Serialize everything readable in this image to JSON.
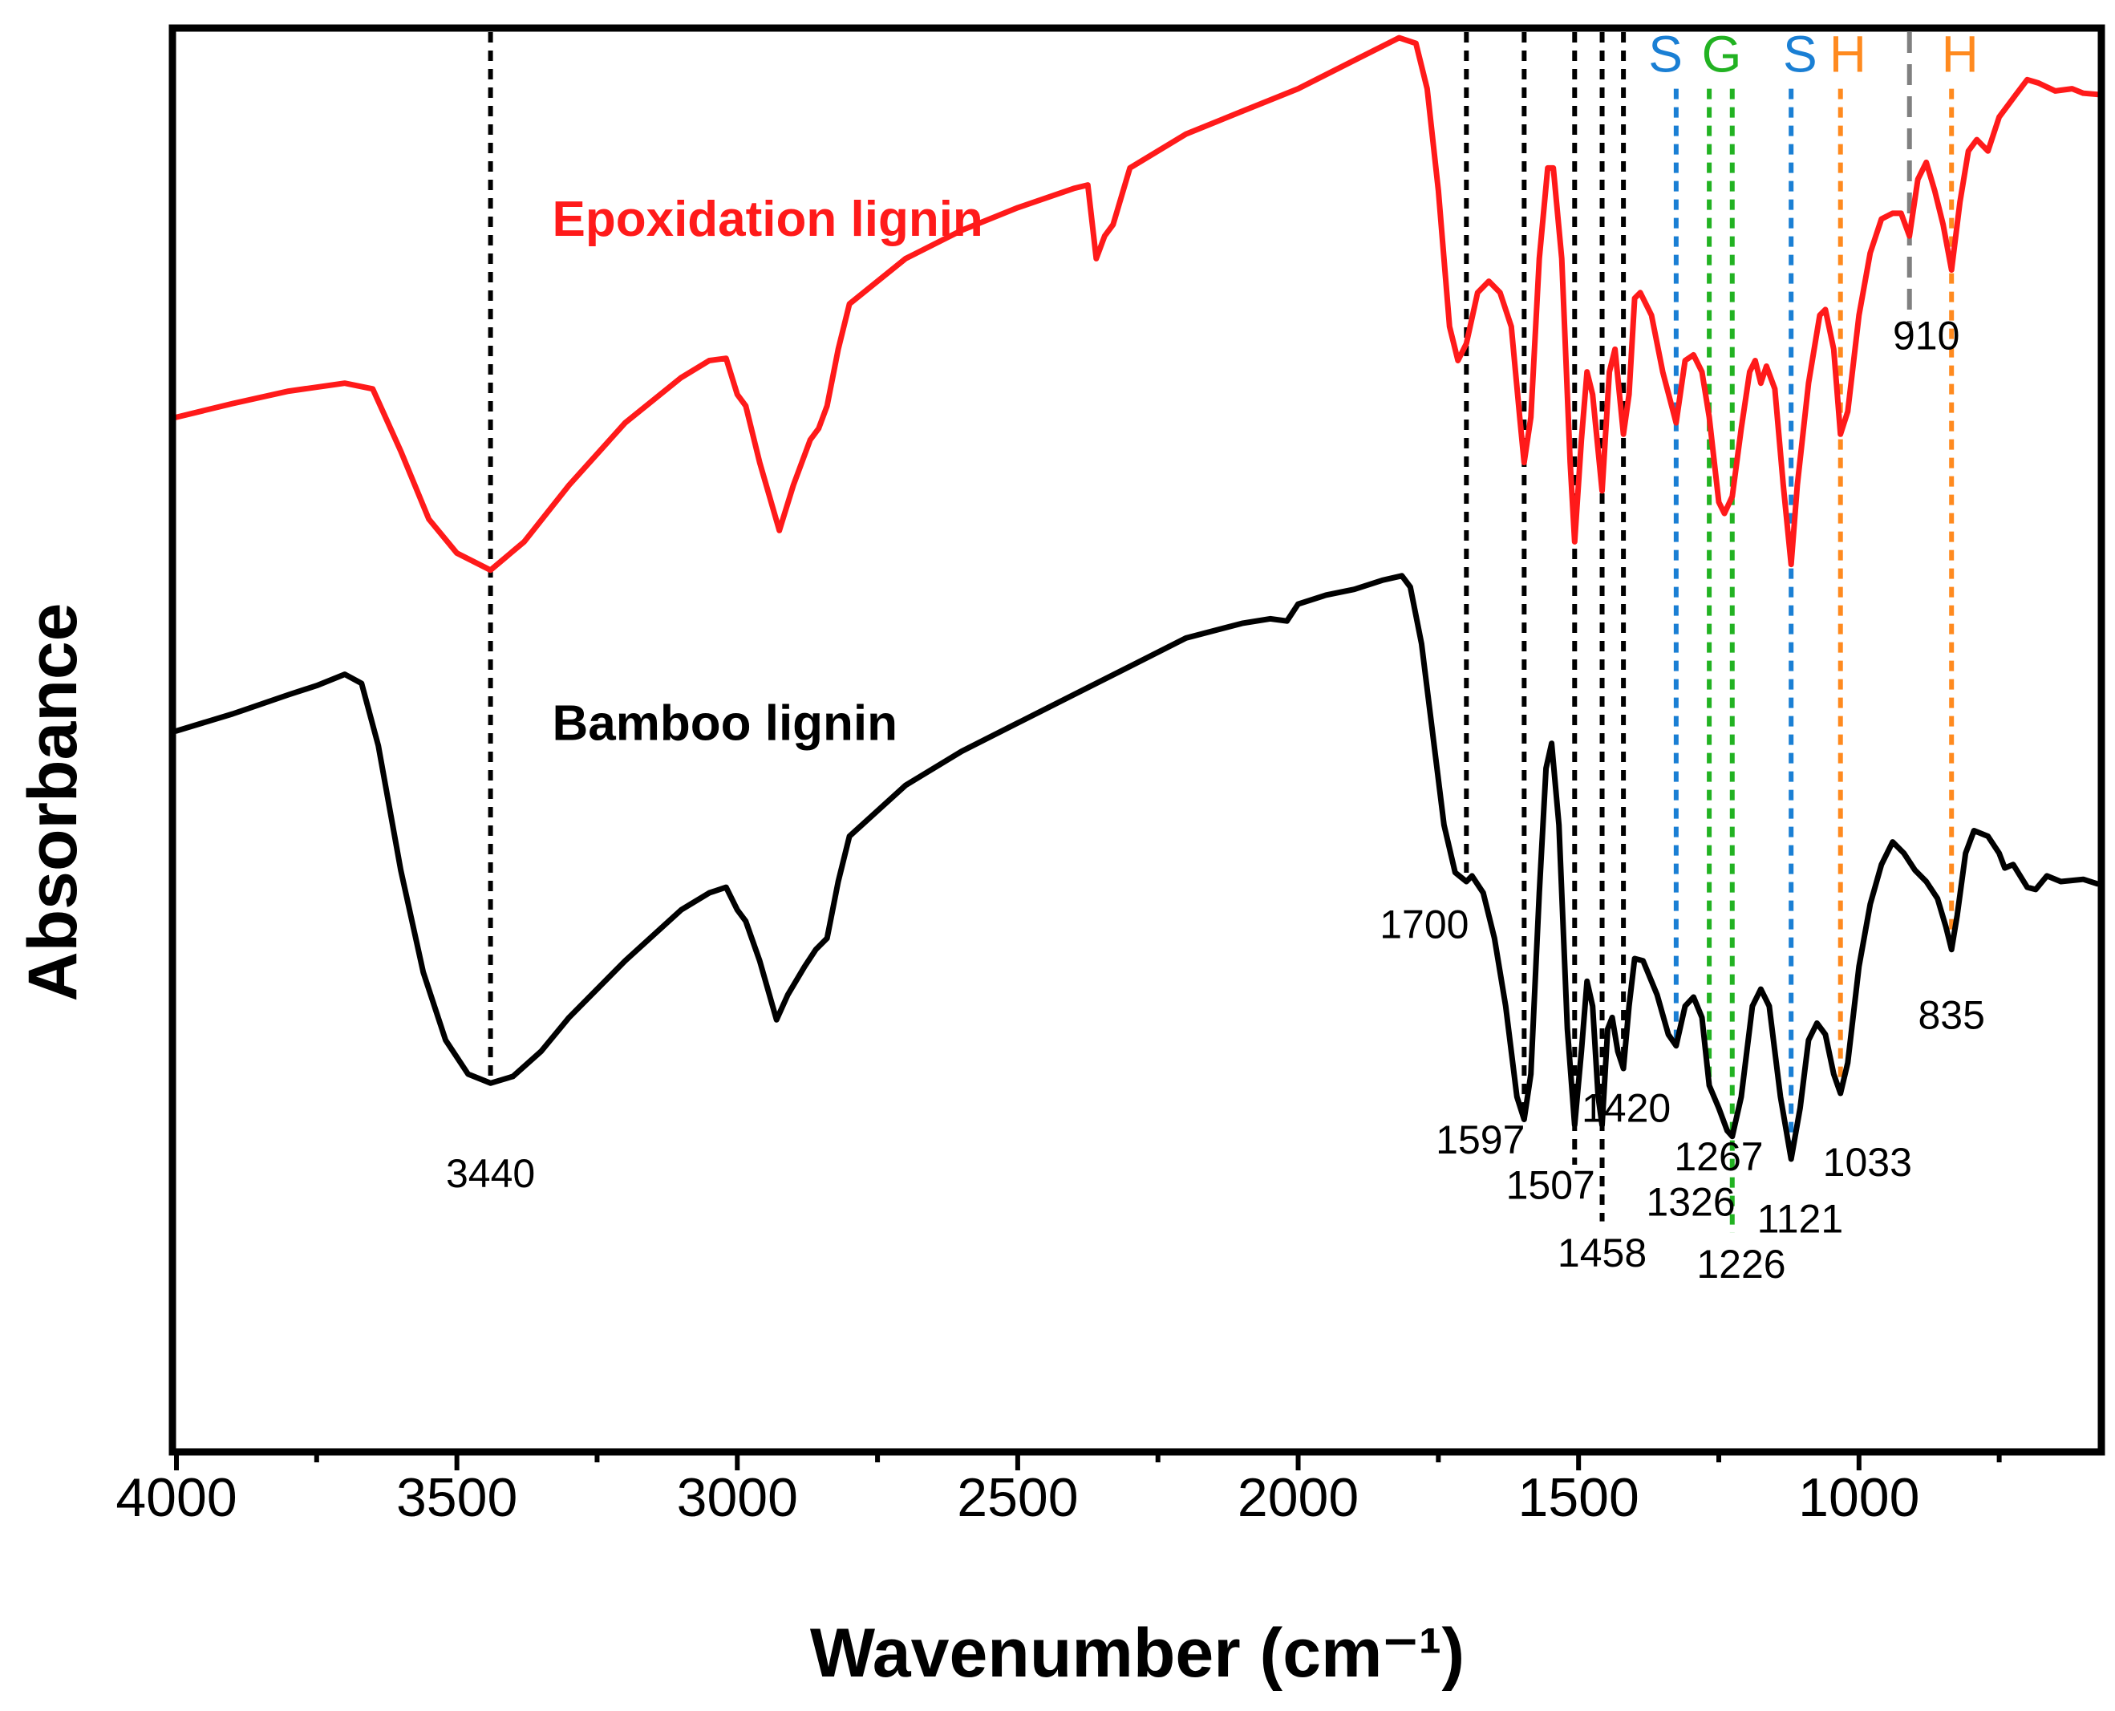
{
  "chart_data": {
    "type": "line",
    "title": "",
    "xlabel": "Wavenumber (cm⁻¹)",
    "ylabel": "Absorbance",
    "xlim": [
      4000,
      575
    ],
    "ylim": [
      -0.25,
      1.0
    ],
    "x_reversed": true,
    "y_ticks_shown": false,
    "xticks": [
      4000,
      3500,
      3000,
      2500,
      2000,
      1500,
      1000
    ],
    "xtick_labels": [
      "4000",
      "3500",
      "3000",
      "2500",
      "2000",
      "1500",
      "1000"
    ],
    "colors": {
      "epoxidation": "#ff1a1a",
      "bamboo": "#000000",
      "black_guides": "#000000",
      "s_unit": "#1a7fd4",
      "g_unit": "#22b222",
      "h_unit": "#ff8a1f",
      "band_910": "#808080"
    },
    "series": [
      {
        "name": "Epoxidation lignin",
        "color": "#ff1a1a",
        "points": [
          [
            4000,
            0.66
          ],
          [
            3900,
            0.672
          ],
          [
            3800,
            0.683
          ],
          [
            3700,
            0.69
          ],
          [
            3650,
            0.685
          ],
          [
            3600,
            0.63
          ],
          [
            3550,
            0.57
          ],
          [
            3500,
            0.54
          ],
          [
            3440,
            0.525
          ],
          [
            3380,
            0.55
          ],
          [
            3300,
            0.6
          ],
          [
            3200,
            0.655
          ],
          [
            3100,
            0.695
          ],
          [
            3050,
            0.71
          ],
          [
            3020,
            0.712
          ],
          [
            3000,
            0.68
          ],
          [
            2985,
            0.67
          ],
          [
            2960,
            0.62
          ],
          [
            2925,
            0.56
          ],
          [
            2900,
            0.6
          ],
          [
            2870,
            0.64
          ],
          [
            2855,
            0.65
          ],
          [
            2840,
            0.67
          ],
          [
            2820,
            0.72
          ],
          [
            2800,
            0.76
          ],
          [
            2700,
            0.8
          ],
          [
            2600,
            0.825
          ],
          [
            2500,
            0.845
          ],
          [
            2400,
            0.862
          ],
          [
            2375,
            0.865
          ],
          [
            2360,
            0.8
          ],
          [
            2345,
            0.82
          ],
          [
            2330,
            0.83
          ],
          [
            2300,
            0.88
          ],
          [
            2200,
            0.91
          ],
          [
            2100,
            0.93
          ],
          [
            2000,
            0.95
          ],
          [
            1900,
            0.975
          ],
          [
            1820,
            0.995
          ],
          [
            1790,
            0.99
          ],
          [
            1770,
            0.95
          ],
          [
            1750,
            0.86
          ],
          [
            1730,
            0.74
          ],
          [
            1715,
            0.71
          ],
          [
            1700,
            0.725
          ],
          [
            1680,
            0.77
          ],
          [
            1660,
            0.78
          ],
          [
            1640,
            0.77
          ],
          [
            1620,
            0.74
          ],
          [
            1605,
            0.66
          ],
          [
            1597,
            0.62
          ],
          [
            1585,
            0.66
          ],
          [
            1570,
            0.8
          ],
          [
            1555,
            0.88
          ],
          [
            1545,
            0.88
          ],
          [
            1530,
            0.8
          ],
          [
            1515,
            0.62
          ],
          [
            1507,
            0.55
          ],
          [
            1495,
            0.64
          ],
          [
            1485,
            0.7
          ],
          [
            1475,
            0.68
          ],
          [
            1458,
            0.595
          ],
          [
            1445,
            0.7
          ],
          [
            1435,
            0.72
          ],
          [
            1425,
            0.67
          ],
          [
            1420,
            0.645
          ],
          [
            1410,
            0.68
          ],
          [
            1400,
            0.765
          ],
          [
            1390,
            0.77
          ],
          [
            1370,
            0.75
          ],
          [
            1350,
            0.7
          ],
          [
            1326,
            0.655
          ],
          [
            1310,
            0.71
          ],
          [
            1295,
            0.715
          ],
          [
            1280,
            0.7
          ],
          [
            1267,
            0.66
          ],
          [
            1250,
            0.585
          ],
          [
            1240,
            0.575
          ],
          [
            1226,
            0.59
          ],
          [
            1210,
            0.65
          ],
          [
            1195,
            0.7
          ],
          [
            1185,
            0.71
          ],
          [
            1175,
            0.69
          ],
          [
            1165,
            0.705
          ],
          [
            1150,
            0.685
          ],
          [
            1135,
            0.6
          ],
          [
            1121,
            0.53
          ],
          [
            1110,
            0.6
          ],
          [
            1090,
            0.69
          ],
          [
            1070,
            0.75
          ],
          [
            1060,
            0.755
          ],
          [
            1045,
            0.72
          ],
          [
            1033,
            0.645
          ],
          [
            1020,
            0.665
          ],
          [
            1000,
            0.75
          ],
          [
            980,
            0.805
          ],
          [
            960,
            0.835
          ],
          [
            940,
            0.84
          ],
          [
            925,
            0.84
          ],
          [
            910,
            0.82
          ],
          [
            895,
            0.87
          ],
          [
            880,
            0.885
          ],
          [
            865,
            0.86
          ],
          [
            850,
            0.83
          ],
          [
            835,
            0.79
          ],
          [
            820,
            0.85
          ],
          [
            805,
            0.895
          ],
          [
            790,
            0.905
          ],
          [
            770,
            0.895
          ],
          [
            750,
            0.925
          ],
          [
            720,
            0.945
          ],
          [
            700,
            0.958
          ],
          [
            680,
            0.955
          ],
          [
            650,
            0.948
          ],
          [
            620,
            0.95
          ],
          [
            600,
            0.946
          ],
          [
            575,
            0.945
          ]
        ]
      },
      {
        "name": "Bamboo lignin",
        "color": "#000000",
        "points": [
          [
            4000,
            0.383
          ],
          [
            3900,
            0.398
          ],
          [
            3800,
            0.415
          ],
          [
            3750,
            0.423
          ],
          [
            3700,
            0.433
          ],
          [
            3670,
            0.425
          ],
          [
            3640,
            0.37
          ],
          [
            3600,
            0.26
          ],
          [
            3560,
            0.17
          ],
          [
            3520,
            0.11
          ],
          [
            3480,
            0.08
          ],
          [
            3440,
            0.072
          ],
          [
            3400,
            0.078
          ],
          [
            3350,
            0.1
          ],
          [
            3300,
            0.13
          ],
          [
            3200,
            0.18
          ],
          [
            3100,
            0.225
          ],
          [
            3050,
            0.24
          ],
          [
            3020,
            0.245
          ],
          [
            3000,
            0.225
          ],
          [
            2985,
            0.215
          ],
          [
            2960,
            0.18
          ],
          [
            2930,
            0.128
          ],
          [
            2910,
            0.15
          ],
          [
            2880,
            0.175
          ],
          [
            2860,
            0.19
          ],
          [
            2840,
            0.2
          ],
          [
            2820,
            0.25
          ],
          [
            2800,
            0.29
          ],
          [
            2700,
            0.335
          ],
          [
            2600,
            0.365
          ],
          [
            2500,
            0.39
          ],
          [
            2400,
            0.415
          ],
          [
            2300,
            0.44
          ],
          [
            2200,
            0.465
          ],
          [
            2100,
            0.478
          ],
          [
            2050,
            0.482
          ],
          [
            2020,
            0.48
          ],
          [
            2000,
            0.495
          ],
          [
            1950,
            0.503
          ],
          [
            1900,
            0.508
          ],
          [
            1850,
            0.516
          ],
          [
            1815,
            0.52
          ],
          [
            1800,
            0.51
          ],
          [
            1780,
            0.46
          ],
          [
            1760,
            0.38
          ],
          [
            1740,
            0.3
          ],
          [
            1720,
            0.258
          ],
          [
            1700,
            0.25
          ],
          [
            1690,
            0.255
          ],
          [
            1670,
            0.24
          ],
          [
            1650,
            0.2
          ],
          [
            1630,
            0.14
          ],
          [
            1610,
            0.06
          ],
          [
            1597,
            0.04
          ],
          [
            1585,
            0.08
          ],
          [
            1570,
            0.24
          ],
          [
            1558,
            0.35
          ],
          [
            1548,
            0.372
          ],
          [
            1535,
            0.3
          ],
          [
            1520,
            0.12
          ],
          [
            1507,
            0.035
          ],
          [
            1495,
            0.1
          ],
          [
            1485,
            0.162
          ],
          [
            1475,
            0.14
          ],
          [
            1465,
            0.06
          ],
          [
            1458,
            0.035
          ],
          [
            1448,
            0.12
          ],
          [
            1440,
            0.13
          ],
          [
            1430,
            0.1
          ],
          [
            1420,
            0.085
          ],
          [
            1410,
            0.14
          ],
          [
            1400,
            0.182
          ],
          [
            1385,
            0.18
          ],
          [
            1360,
            0.15
          ],
          [
            1340,
            0.115
          ],
          [
            1326,
            0.105
          ],
          [
            1310,
            0.14
          ],
          [
            1295,
            0.148
          ],
          [
            1280,
            0.13
          ],
          [
            1267,
            0.07
          ],
          [
            1250,
            0.05
          ],
          [
            1235,
            0.03
          ],
          [
            1226,
            0.025
          ],
          [
            1210,
            0.06
          ],
          [
            1190,
            0.14
          ],
          [
            1175,
            0.155
          ],
          [
            1160,
            0.14
          ],
          [
            1140,
            0.06
          ],
          [
            1121,
            0.005
          ],
          [
            1105,
            0.05
          ],
          [
            1090,
            0.11
          ],
          [
            1075,
            0.125
          ],
          [
            1060,
            0.115
          ],
          [
            1045,
            0.08
          ],
          [
            1033,
            0.063
          ],
          [
            1020,
            0.09
          ],
          [
            1000,
            0.175
          ],
          [
            980,
            0.23
          ],
          [
            960,
            0.265
          ],
          [
            940,
            0.285
          ],
          [
            920,
            0.275
          ],
          [
            900,
            0.26
          ],
          [
            880,
            0.25
          ],
          [
            860,
            0.235
          ],
          [
            845,
            0.21
          ],
          [
            835,
            0.19
          ],
          [
            825,
            0.22
          ],
          [
            810,
            0.275
          ],
          [
            795,
            0.295
          ],
          [
            770,
            0.29
          ],
          [
            750,
            0.275
          ],
          [
            740,
            0.262
          ],
          [
            725,
            0.265
          ],
          [
            700,
            0.245
          ],
          [
            685,
            0.243
          ],
          [
            665,
            0.255
          ],
          [
            640,
            0.25
          ],
          [
            600,
            0.252
          ],
          [
            575,
            0.248
          ]
        ]
      }
    ],
    "series_labels": [
      {
        "text": "Epoxidation lignin",
        "color": "#ff1a1a",
        "x": 3330,
        "y": 0.82
      },
      {
        "text": "Bamboo lignin",
        "color": "#000000",
        "x": 3330,
        "y": 0.375
      }
    ],
    "guides": [
      {
        "x": 3440,
        "style": "black",
        "y_from": 0.072,
        "y_to": 1.0
      },
      {
        "x": 1700,
        "style": "black",
        "y_from": 0.25,
        "y_to": 1.0
      },
      {
        "x": 1597,
        "style": "black",
        "y_from": 0.04,
        "y_to": 1.0
      },
      {
        "x": 1507,
        "style": "black",
        "y_from": 0.0,
        "y_to": 1.0
      },
      {
        "x": 1458,
        "style": "black",
        "y_from": -0.05,
        "y_to": 1.0
      },
      {
        "x": 1420,
        "style": "black",
        "y_from": 0.085,
        "y_to": 1.0
      },
      {
        "x": 1326,
        "style": "s_unit",
        "y_from": 0.105,
        "y_to": 0.95
      },
      {
        "x": 1267,
        "style": "g_unit",
        "y_from": 0.07,
        "y_to": 0.95
      },
      {
        "x": 1226,
        "style": "g_unit",
        "y_from": -0.06,
        "y_to": 0.95
      },
      {
        "x": 1121,
        "style": "s_unit",
        "y_from": 0.005,
        "y_to": 0.95
      },
      {
        "x": 1033,
        "style": "h_unit",
        "y_from": 0.063,
        "y_to": 0.95
      },
      {
        "x": 910,
        "style": "band_910",
        "y_from": 0.74,
        "y_to": 1.0
      },
      {
        "x": 835,
        "style": "h_unit",
        "y_from": 0.19,
        "y_to": 0.95
      }
    ],
    "unit_labels": [
      {
        "text": "S",
        "color": "#1a7fd4",
        "x": 1345,
        "y": 0.965
      },
      {
        "text": "G",
        "color": "#22b222",
        "x": 1245,
        "y": 0.965
      },
      {
        "text": "S",
        "color": "#1a7fd4",
        "x": 1105,
        "y": 0.965
      },
      {
        "text": "H",
        "color": "#ff8a1f",
        "x": 1020,
        "y": 0.965
      },
      {
        "text": "H",
        "color": "#ff8a1f",
        "x": 820,
        "y": 0.965
      }
    ],
    "peak_labels": [
      {
        "text": "3440",
        "x": 3440,
        "y": -0.02
      },
      {
        "text": "1700",
        "x": 1775,
        "y": 0.2
      },
      {
        "text": "1597",
        "x": 1675,
        "y": 0.01
      },
      {
        "text": "1420",
        "x": 1415,
        "y": 0.038
      },
      {
        "text": "1507",
        "x": 1550,
        "y": -0.03
      },
      {
        "text": "1267",
        "x": 1250,
        "y": -0.005
      },
      {
        "text": "1326",
        "x": 1300,
        "y": -0.045
      },
      {
        "text": "1458",
        "x": 1458,
        "y": -0.09
      },
      {
        "text": "1226",
        "x": 1210,
        "y": -0.1
      },
      {
        "text": "1121",
        "x": 1105,
        "y": -0.06
      },
      {
        "text": "1033",
        "x": 985,
        "y": -0.01
      },
      {
        "text": "910",
        "x": 880,
        "y": 0.72
      },
      {
        "text": "835",
        "x": 835,
        "y": 0.12
      }
    ]
  }
}
